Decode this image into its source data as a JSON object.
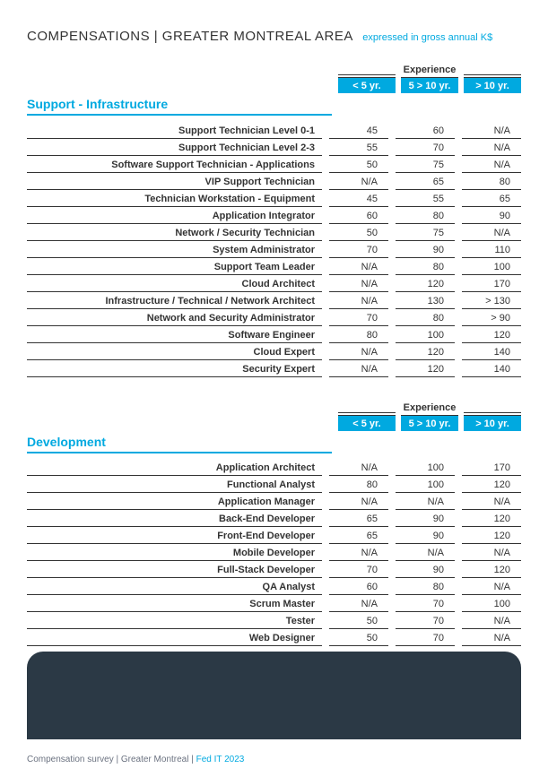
{
  "page": {
    "title": "COMPENSATIONS | GREATER MONTREAL AREA",
    "subtitle": "expressed in gross annual K$"
  },
  "colors": {
    "accent": "#00a9e0",
    "text": "#333333",
    "footer_bg": "#2b3945"
  },
  "headers": {
    "experience": "Experience",
    "col1": "< 5 yr.",
    "col2": "5 > 10 yr.",
    "col3": "> 10 yr."
  },
  "sections": [
    {
      "title": "Support - Infrastructure",
      "rows": [
        {
          "label": "Support Technician Level 0-1",
          "v": [
            "45",
            "60",
            "N/A"
          ]
        },
        {
          "label": "Support Technician Level 2-3",
          "v": [
            "55",
            "70",
            "N/A"
          ]
        },
        {
          "label": "Software Support Technician - Applications",
          "v": [
            "50",
            "75",
            "N/A"
          ]
        },
        {
          "label": "VIP Support Technician",
          "v": [
            "N/A",
            "65",
            "80"
          ]
        },
        {
          "label": "Technician Workstation - Equipment",
          "v": [
            "45",
            "55",
            "65"
          ]
        },
        {
          "label": "Application Integrator",
          "v": [
            "60",
            "80",
            "90"
          ]
        },
        {
          "label": "Network / Security Technician",
          "v": [
            "50",
            "75",
            "N/A"
          ]
        },
        {
          "label": "System Administrator",
          "v": [
            "70",
            "90",
            "110"
          ]
        },
        {
          "label": "Support Team Leader",
          "v": [
            "N/A",
            "80",
            "100"
          ]
        },
        {
          "label": "Cloud Architect",
          "v": [
            "N/A",
            "120",
            "170"
          ]
        },
        {
          "label": "Infrastructure / Technical / Network Architect",
          "v": [
            "N/A",
            "130",
            "> 130"
          ]
        },
        {
          "label": "Network and Security Administrator",
          "v": [
            "70",
            "80",
            "> 90"
          ]
        },
        {
          "label": "Software Engineer",
          "v": [
            "80",
            "100",
            "120"
          ]
        },
        {
          "label": "Cloud Expert",
          "v": [
            "N/A",
            "120",
            "140"
          ]
        },
        {
          "label": "Security Expert",
          "v": [
            "N/A",
            "120",
            "140"
          ]
        }
      ]
    },
    {
      "title": "Development",
      "rows": [
        {
          "label": "Application Architect",
          "v": [
            "N/A",
            "100",
            "170"
          ]
        },
        {
          "label": "Functional Analyst",
          "v": [
            "80",
            "100",
            "120"
          ]
        },
        {
          "label": "Application Manager",
          "v": [
            "N/A",
            "N/A",
            "N/A"
          ]
        },
        {
          "label": "Back-End Developer",
          "v": [
            "65",
            "90",
            "120"
          ]
        },
        {
          "label": "Front-End Developer",
          "v": [
            "65",
            "90",
            "120"
          ]
        },
        {
          "label": "Mobile Developer",
          "v": [
            "N/A",
            "N/A",
            "N/A"
          ]
        },
        {
          "label": "Full-Stack Developer",
          "v": [
            "70",
            "90",
            "120"
          ]
        },
        {
          "label": "QA Analyst",
          "v": [
            "60",
            "80",
            "N/A"
          ]
        },
        {
          "label": "Scrum Master",
          "v": [
            "N/A",
            "70",
            "100"
          ]
        },
        {
          "label": "Tester",
          "v": [
            "50",
            "70",
            "N/A"
          ]
        },
        {
          "label": "Web Designer",
          "v": [
            "50",
            "70",
            "N/A"
          ]
        }
      ]
    }
  ],
  "footer": {
    "text1": "Compensation survey",
    "sep": " | ",
    "text2": "Greater Montreal",
    "text3": "Fed IT 2023"
  }
}
